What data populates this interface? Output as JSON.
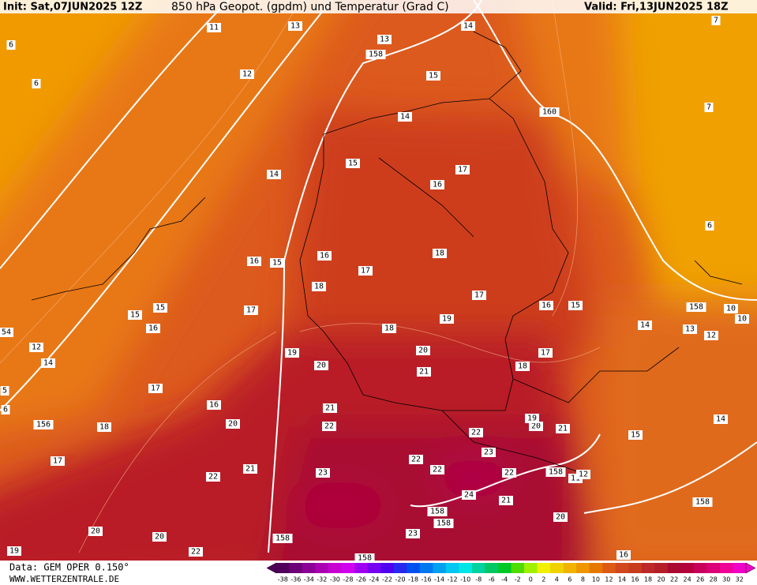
{
  "header": {
    "init": "Init: Sat,07JUN2025 12Z",
    "title": "850 hPa Geopot. (gpdm) und Temperatur (Grad C)",
    "valid": "Valid: Fri,13JUN2025 18Z"
  },
  "footer": {
    "source": "Data: GEM OPER 0.150°",
    "website": "WWW.WETTERZENTRALE.DE"
  },
  "map_labels": [
    "11",
    "13",
    "13",
    "14",
    "12",
    "15",
    "14",
    "14",
    "15",
    "17",
    "16",
    "16",
    "15",
    "16",
    "17",
    "18",
    "18",
    "17",
    "16",
    "15",
    "15",
    "15",
    "16",
    "17",
    "19",
    "18",
    "12",
    "14",
    "19",
    "20",
    "20",
    "17",
    "18",
    "21",
    "17",
    "16",
    "21",
    "22",
    "20",
    "18",
    "21",
    "20",
    "19",
    "22",
    "15",
    "14",
    "17",
    "22",
    "23",
    "22",
    "22",
    "21",
    "22",
    "23",
    "24",
    "21",
    "11",
    "12",
    "20",
    "23",
    "20",
    "20",
    "22",
    "19",
    "16",
    "7",
    "7",
    "6",
    "6",
    "6",
    "14",
    "13",
    "12",
    "10",
    "10",
    "158",
    "160",
    "158",
    "156",
    "158",
    "158",
    "158",
    "158",
    "158",
    "158",
    "54",
    "5",
    "6"
  ],
  "colorbar": {
    "labels": [
      "-38",
      "-36",
      "-34",
      "-32",
      "-30",
      "-28",
      "-26",
      "-24",
      "-22",
      "-20",
      "-18",
      "-16",
      "-14",
      "-12",
      "-10",
      "-8",
      "-6",
      "-4",
      "-2",
      "0",
      "2",
      "4",
      "6",
      "8",
      "10",
      "12",
      "14",
      "16",
      "18",
      "20",
      "22",
      "24",
      "26",
      "28",
      "30",
      "32"
    ],
    "colors": [
      "#50005a",
      "#6e0078",
      "#8c0096",
      "#aa00b4",
      "#c800d2",
      "#d200f0",
      "#a000f0",
      "#7800f0",
      "#5000f0",
      "#2828f0",
      "#0050f0",
      "#0078f0",
      "#00a0f0",
      "#00c8f0",
      "#00e6e6",
      "#00d2a0",
      "#00c864",
      "#00c828",
      "#50dc00",
      "#a0f000",
      "#f0f000",
      "#f0d200",
      "#f0b400",
      "#f09600",
      "#e67800",
      "#dc5a14",
      "#d2461e",
      "#c83c1e",
      "#be2828",
      "#b41e28",
      "#aa0a32",
      "#b4003c",
      "#c8005a",
      "#dc0078",
      "#f00096",
      "#f000c8"
    ]
  }
}
